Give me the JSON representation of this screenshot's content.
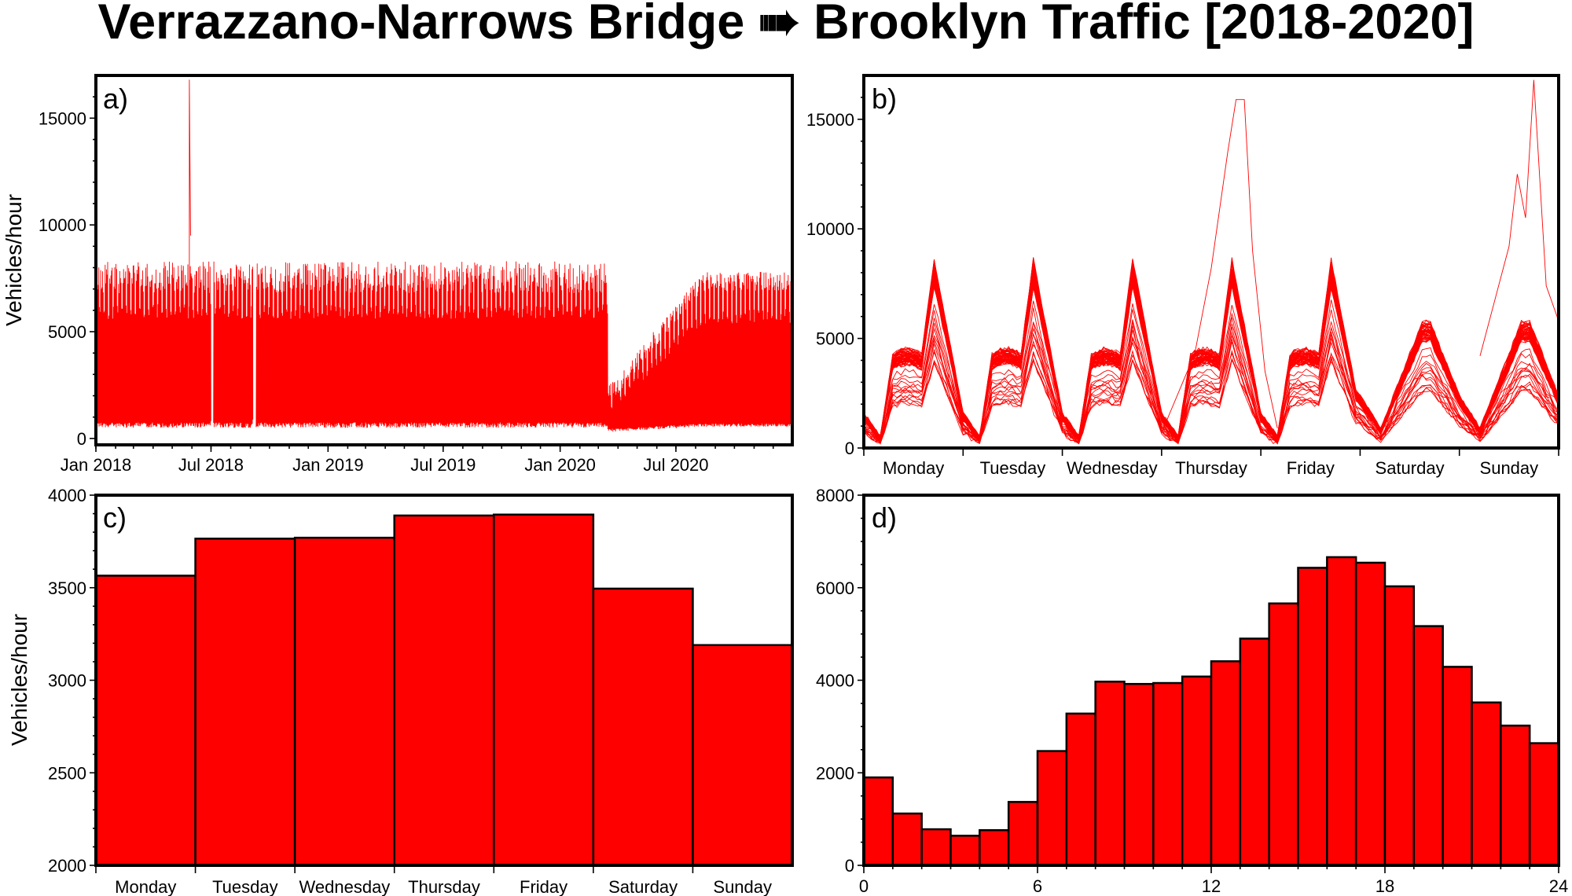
{
  "title": "Verrazzano-Narrows Bridge ➠ Brooklyn Traffic [2018-2020]",
  "colors": {
    "series": "#ff0000",
    "frame": "#000000",
    "background": "#ffffff"
  },
  "chart_data": [
    {
      "panel": "a)",
      "type": "line",
      "ylabel": "Vehicles/hour",
      "ylim": [
        -300,
        17000
      ],
      "yticks": [
        "0",
        "5000",
        "10000",
        "15000"
      ],
      "xticks": [
        "Jan 2018",
        "Jul 2018",
        "Jan 2019",
        "Jul 2019",
        "Jan 2020",
        "Jul 2020"
      ],
      "x_range": [
        "2018-01-01",
        "2020-12-31"
      ],
      "gaps": [
        [
          "2018-07-01",
          "2018-07-05"
        ],
        [
          "2018-09-05",
          "2018-09-10"
        ]
      ],
      "spike": {
        "date": "2018-05-28",
        "value": 16800
      },
      "weekday_envelope": {
        "low": 500,
        "high": 8300
      },
      "covid_drop": {
        "date": "2020-03-15",
        "min": 300,
        "recovered_high": 7800
      }
    },
    {
      "panel": "b)",
      "type": "line",
      "ylim": [
        0,
        17000
      ],
      "yticks": [
        "0",
        "5000",
        "10000",
        "15000"
      ],
      "xticks": [
        "Monday",
        "Tuesday",
        "Wednesday",
        "Thursday",
        "Friday",
        "Saturday",
        "Sunday"
      ],
      "weekday_profile": {
        "night_min": 400,
        "midday": 4100,
        "evening_peak": 8400
      },
      "weekend_profile": {
        "night_min": 800,
        "peak": 5600
      },
      "outliers": [
        "Thursday evening peak ~15900",
        "Sunday evening peak ~16800"
      ]
    },
    {
      "panel": "c)",
      "type": "bar",
      "ylabel": "Vehicles/hour",
      "categories": [
        "Monday",
        "Tuesday",
        "Wednesday",
        "Thursday",
        "Friday",
        "Saturday",
        "Sunday"
      ],
      "values": [
        3565,
        3765,
        3770,
        3890,
        3895,
        3495,
        3190
      ],
      "ylim": [
        2000,
        4000
      ],
      "yticks": [
        "2000",
        "2500",
        "3000",
        "3500",
        "4000"
      ]
    },
    {
      "panel": "d)",
      "type": "bar",
      "x": [
        0,
        1,
        2,
        3,
        4,
        5,
        6,
        7,
        8,
        9,
        10,
        11,
        12,
        13,
        14,
        15,
        16,
        17,
        18,
        19,
        20,
        21,
        22,
        23
      ],
      "values": [
        1900,
        1120,
        780,
        640,
        760,
        1370,
        2470,
        3280,
        3970,
        3920,
        3940,
        4080,
        4410,
        4900,
        5660,
        6430,
        6660,
        6540,
        6030,
        5170,
        4290,
        3520,
        3020,
        2640
      ],
      "xlim": [
        0,
        24
      ],
      "ylim": [
        0,
        8000
      ],
      "xticks": [
        "0",
        "6",
        "12",
        "18",
        "24"
      ],
      "yticks": [
        "0",
        "2000",
        "4000",
        "6000",
        "8000"
      ]
    }
  ]
}
